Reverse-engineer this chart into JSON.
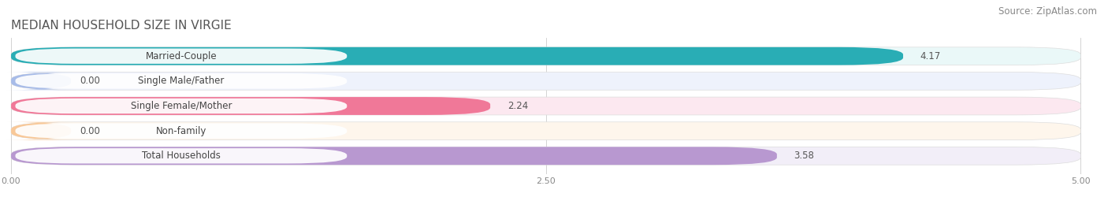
{
  "title": "MEDIAN HOUSEHOLD SIZE IN VIRGIE",
  "source": "Source: ZipAtlas.com",
  "categories": [
    "Married-Couple",
    "Single Male/Father",
    "Single Female/Mother",
    "Non-family",
    "Total Households"
  ],
  "values": [
    4.17,
    0.0,
    2.24,
    0.0,
    3.58
  ],
  "bar_colors": [
    "#29adb5",
    "#a8bce8",
    "#f07898",
    "#f8c898",
    "#b898d0"
  ],
  "bar_bg_colors": [
    "#eaf8f8",
    "#eef2fc",
    "#fce8f0",
    "#fef6ec",
    "#f2eef8"
  ],
  "xlim": [
    0,
    5.0
  ],
  "xticks": [
    0.0,
    2.5,
    5.0
  ],
  "xtick_labels": [
    "0.00",
    "2.50",
    "5.00"
  ],
  "title_fontsize": 11,
  "source_fontsize": 8.5,
  "label_fontsize": 8.5,
  "value_fontsize": 8.5,
  "background_color": "#ffffff"
}
